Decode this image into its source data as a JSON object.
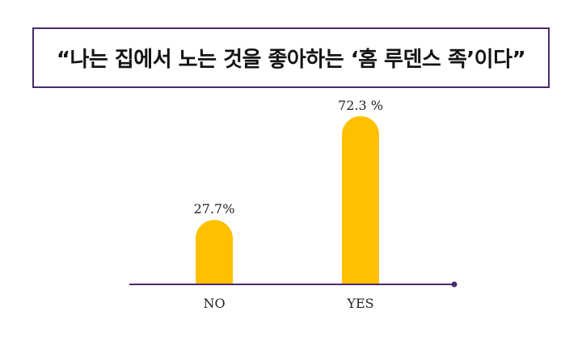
{
  "title": "“나는 집에서 노는 것을 좋아하는 ‘홈 루덴스 족’이다”",
  "colors": {
    "bar": "#FFC000",
    "axis": "#4B2A6B",
    "title_border": "#4B2A6B"
  },
  "chart_data": {
    "type": "bar",
    "categories": [
      "NO",
      "YES"
    ],
    "values": [
      27.7,
      72.3
    ],
    "value_labels": [
      "27.7%",
      "72.3 %"
    ],
    "title": "“나는 집에서 노는 것을 좋아하는 ‘홈 루덴스 족’이다”",
    "xlabel": "",
    "ylabel": "",
    "ylim": [
      0,
      100
    ],
    "grid": false,
    "legend": "none"
  }
}
